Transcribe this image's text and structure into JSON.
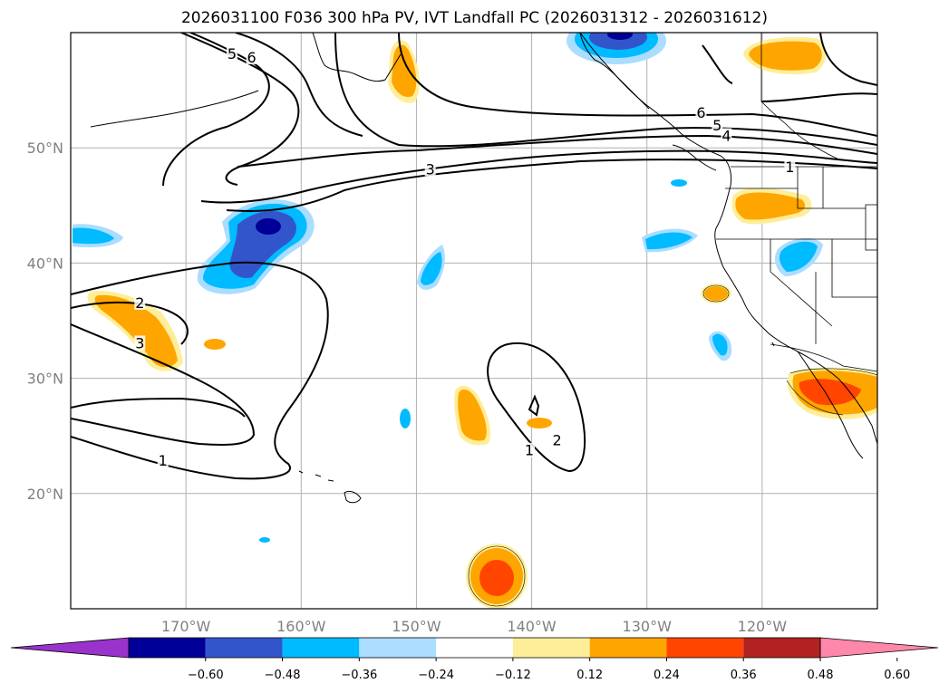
{
  "title": "2026031100 F036 300 hPa PV, IVT Landfall PC (2026031312 - 2026031612)",
  "map": {
    "projection": "PlateCarree",
    "lon_range": [
      -180,
      -110
    ],
    "lat_range": [
      10,
      60
    ],
    "gridlines": true,
    "lat_ticks": [
      {
        "value": 50,
        "label": "50°N"
      },
      {
        "value": 40,
        "label": "40°N"
      },
      {
        "value": 30,
        "label": "30°N"
      },
      {
        "value": 20,
        "label": "20°N"
      }
    ],
    "lon_ticks": [
      {
        "value": -170,
        "label": "170°W"
      },
      {
        "value": -160,
        "label": "160°W"
      },
      {
        "value": -150,
        "label": "150°W"
      },
      {
        "value": -140,
        "label": "140°W"
      },
      {
        "value": -130,
        "label": "130°W"
      },
      {
        "value": -120,
        "label": "120°W"
      }
    ],
    "pv_contour_labels": [
      {
        "text": "5",
        "lon": -166,
        "lat": 58.1
      },
      {
        "text": "6",
        "lon": -164.3,
        "lat": 57.8
      },
      {
        "text": "3",
        "lon": -148.8,
        "lat": 48.1
      },
      {
        "text": "2",
        "lon": -174,
        "lat": 36.5
      },
      {
        "text": "3",
        "lon": -174.0,
        "lat": 33.0
      },
      {
        "text": "1",
        "lon": -172,
        "lat": 22.8
      },
      {
        "text": "6",
        "lon": -125.3,
        "lat": 53.0
      },
      {
        "text": "5",
        "lon": -123.9,
        "lat": 51.9
      },
      {
        "text": "4",
        "lon": -123.1,
        "lat": 51.0
      },
      {
        "text": "1",
        "lon": -117.6,
        "lat": 48.3
      },
      {
        "text": "2",
        "lon": -137.8,
        "lat": 24.6
      },
      {
        "text": "1",
        "lon": -140.2,
        "lat": 23.7
      }
    ]
  },
  "colorbar": {
    "ticks": [
      "−0.60",
      "−0.48",
      "−0.36",
      "−0.24",
      "−0.12",
      "0.12",
      "0.24",
      "0.36",
      "0.48",
      "0.60"
    ],
    "colors": [
      "#9933cc",
      "#000099",
      "#3355cc",
      "#00bbff",
      "#aaddff",
      "#ffffff",
      "#ffee99",
      "#ffa500",
      "#ff4500",
      "#b22222",
      "#ff88aa"
    ],
    "extend": "both"
  }
}
